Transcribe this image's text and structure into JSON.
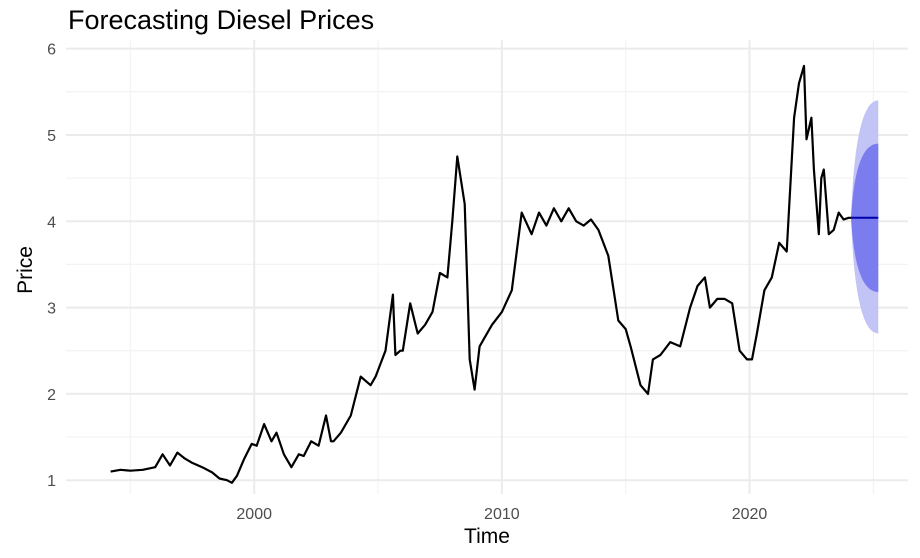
{
  "chart_data": {
    "type": "line",
    "title": "Forecasting Diesel Prices",
    "xlabel": "Time",
    "ylabel": "Price",
    "xlim": [
      1992.4,
      2026.4
    ],
    "ylim": [
      0.84,
      6.1
    ],
    "x_ticks": [
      2000,
      2010,
      2020
    ],
    "y_ticks": [
      1,
      2,
      3,
      4,
      5,
      6
    ],
    "grid": true,
    "legend": "none",
    "series": [
      {
        "x": [
          1994.2,
          1994.6,
          1995.0,
          1995.5,
          1996.0,
          1996.3,
          1996.6,
          1996.9,
          1997.2,
          1997.5,
          1997.9,
          1998.3,
          1998.6,
          1998.9,
          1999.1,
          1999.3,
          1999.6,
          1999.9,
          2000.1,
          2000.4,
          2000.7,
          2000.9,
          2001.2,
          2001.5,
          2001.8,
          2002.0,
          2002.3,
          2002.6,
          2002.9,
          2003.1,
          2003.2,
          2003.5,
          2003.9,
          2004.3,
          2004.7,
          2004.9,
          2005.3,
          2005.6,
          2005.7,
          2005.9,
          2006.0,
          2006.3,
          2006.6,
          2006.9,
          2007.2,
          2007.5,
          2007.8,
          2008.0,
          2008.2,
          2008.5,
          2008.7,
          2008.9,
          2009.1,
          2009.3,
          2009.6,
          2010.0,
          2010.4,
          2010.8,
          2011.2,
          2011.5,
          2011.8,
          2012.1,
          2012.4,
          2012.7,
          2013.0,
          2013.3,
          2013.6,
          2013.9,
          2014.3,
          2014.7,
          2015.0,
          2015.2,
          2015.6,
          2015.9,
          2016.1,
          2016.4,
          2016.8,
          2017.2,
          2017.6,
          2017.9,
          2018.2,
          2018.4,
          2018.7,
          2019.0,
          2019.3,
          2019.6,
          2019.9,
          2020.1,
          2020.3,
          2020.6,
          2020.9,
          2021.2,
          2021.5,
          2021.8,
          2022.0,
          2022.2,
          2022.3,
          2022.5,
          2022.6,
          2022.8,
          2022.9,
          2023.0,
          2023.2,
          2023.4,
          2023.6,
          2023.8,
          2024.0,
          2024.1
        ],
        "values": [
          1.1,
          1.12,
          1.11,
          1.12,
          1.15,
          1.3,
          1.17,
          1.32,
          1.25,
          1.2,
          1.15,
          1.09,
          1.02,
          1.0,
          0.97,
          1.05,
          1.25,
          1.42,
          1.4,
          1.65,
          1.45,
          1.55,
          1.3,
          1.15,
          1.3,
          1.28,
          1.45,
          1.4,
          1.75,
          1.45,
          1.45,
          1.55,
          1.75,
          2.2,
          2.1,
          2.2,
          2.5,
          3.15,
          2.45,
          2.5,
          2.5,
          3.05,
          2.7,
          2.8,
          2.95,
          3.4,
          3.35,
          4.0,
          4.75,
          4.2,
          2.4,
          2.05,
          2.55,
          2.65,
          2.8,
          2.95,
          3.2,
          4.1,
          3.85,
          4.1,
          3.95,
          4.15,
          4.0,
          4.15,
          4.0,
          3.95,
          4.02,
          3.9,
          3.6,
          2.85,
          2.75,
          2.55,
          2.1,
          2.0,
          2.4,
          2.45,
          2.6,
          2.55,
          3.0,
          3.25,
          3.35,
          3.0,
          3.1,
          3.1,
          3.05,
          2.5,
          2.4,
          2.4,
          2.7,
          3.2,
          3.35,
          3.75,
          3.65,
          5.2,
          5.6,
          5.8,
          4.95,
          5.2,
          4.6,
          3.85,
          4.5,
          4.6,
          3.85,
          3.9,
          4.1,
          4.02,
          4.04,
          4.04
        ]
      }
    ],
    "forecast": {
      "x_start": 2024.1,
      "x_end": 2025.2,
      "mean": 4.04,
      "band_80": [
        3.18,
        4.9
      ],
      "band_95": [
        2.7,
        5.4
      ],
      "colors": {
        "line": "#0000aa",
        "band_80": "#7b7cee",
        "band_95": "#c3c4f6"
      }
    }
  }
}
